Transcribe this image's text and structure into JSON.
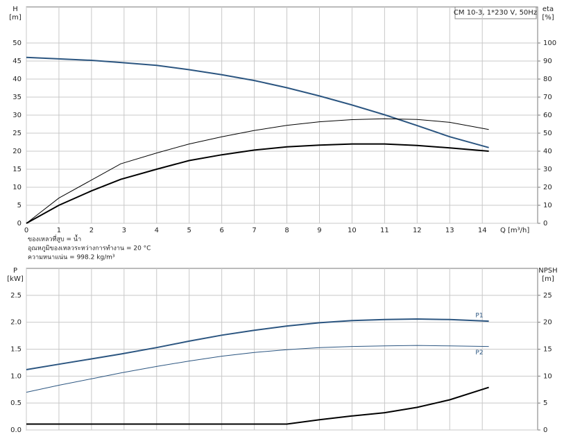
{
  "chart_data": [
    {
      "type": "line",
      "box_text": "CM 10-3, 1*230 V, 50Hz",
      "ylabel": [
        "H",
        "[m]"
      ],
      "y2label": [
        "eta",
        "[%]"
      ],
      "xlabel": "Q [m³/h]",
      "notes": [
        "ของเหลวที่สูบ = น้ำ",
        "อุณหภูมิของเหลวระหว่างการทำงาน = 20 °C",
        "ความหนาแน่น = 998.2 kg/m³"
      ],
      "x": [
        0,
        1,
        2,
        2.9,
        4,
        5,
        6,
        7,
        8,
        9,
        10,
        11,
        12,
        13,
        14.2
      ],
      "xlim": [
        0,
        15.7
      ],
      "xticks": [
        0,
        1,
        2,
        3,
        4,
        5,
        6,
        7,
        8,
        9,
        10,
        11,
        12,
        13,
        14
      ],
      "ylim": [
        0,
        60
      ],
      "yticks": [
        0,
        5,
        10,
        15,
        20,
        25,
        30,
        35,
        40,
        45,
        50
      ],
      "y2lim": [
        0,
        120
      ],
      "y2ticks": [
        0,
        10,
        20,
        30,
        40,
        50,
        60,
        70,
        80,
        90,
        100
      ],
      "grid": true,
      "series": [
        {
          "color": "#2b5580",
          "line_width": 2,
          "values": [
            46,
            45.6,
            45.2,
            44.6,
            43.8,
            42.6,
            41.2,
            39.6,
            37.6,
            35.3,
            32.8,
            30.1,
            27.1,
            24.0,
            21.0
          ]
        },
        {
          "color": "#000000",
          "line_width": 1,
          "axis": "y2",
          "values": [
            0,
            14,
            24,
            33,
            39,
            44,
            48,
            51.5,
            54.3,
            56.3,
            57.5,
            58,
            57.6,
            56,
            52
          ]
        },
        {
          "color": "#000000",
          "line_width": 2,
          "axis": "y2",
          "values": [
            0,
            10,
            18,
            24.4,
            30,
            34.8,
            38,
            40.6,
            42.4,
            43.4,
            44,
            44,
            43.2,
            41.8,
            40
          ]
        }
      ]
    },
    {
      "type": "line",
      "ylabel": [
        "P",
        "[kW]"
      ],
      "y2label": [
        "NPSH",
        "[m]"
      ],
      "x": [
        0,
        1,
        2,
        2.9,
        4,
        5,
        6,
        7,
        8,
        9,
        10,
        11,
        12,
        13,
        14.2
      ],
      "xlim": [
        0,
        15.7
      ],
      "xticks": [
        0,
        1,
        2,
        3,
        4,
        5,
        6,
        7,
        8,
        9,
        10,
        11,
        12,
        13,
        14
      ],
      "ylim": [
        0,
        3
      ],
      "yticks": [
        {
          "value": 0,
          "label": "0.0"
        },
        0.5,
        {
          "value": 1,
          "label": "1.0"
        },
        1.5,
        {
          "value": 2,
          "label": "2.0"
        },
        2.5
      ],
      "y2lim": [
        0,
        30
      ],
      "y2ticks": [
        0,
        5,
        10,
        15,
        20,
        25
      ],
      "grid": true,
      "series": [
        {
          "name": "P1",
          "color": "#2b5580",
          "line_width": 2,
          "values": [
            1.12,
            1.22,
            1.32,
            1.41,
            1.53,
            1.65,
            1.76,
            1.85,
            1.93,
            1.99,
            2.03,
            2.05,
            2.06,
            2.05,
            2.02
          ]
        },
        {
          "name": "P2",
          "color": "#2b5580",
          "line_width": 1,
          "values": [
            0.7,
            0.83,
            0.95,
            1.06,
            1.18,
            1.28,
            1.37,
            1.44,
            1.49,
            1.53,
            1.55,
            1.56,
            1.57,
            1.56,
            1.55
          ]
        },
        {
          "name": "NPSH",
          "color": "#000000",
          "line_width": 2,
          "axis": "y2",
          "values": [
            1.1,
            1.1,
            1.1,
            1.1,
            1.1,
            1.1,
            1.1,
            1.1,
            1.1,
            1.9,
            2.6,
            3.2,
            4.2,
            5.6,
            7.9
          ]
        }
      ]
    }
  ]
}
